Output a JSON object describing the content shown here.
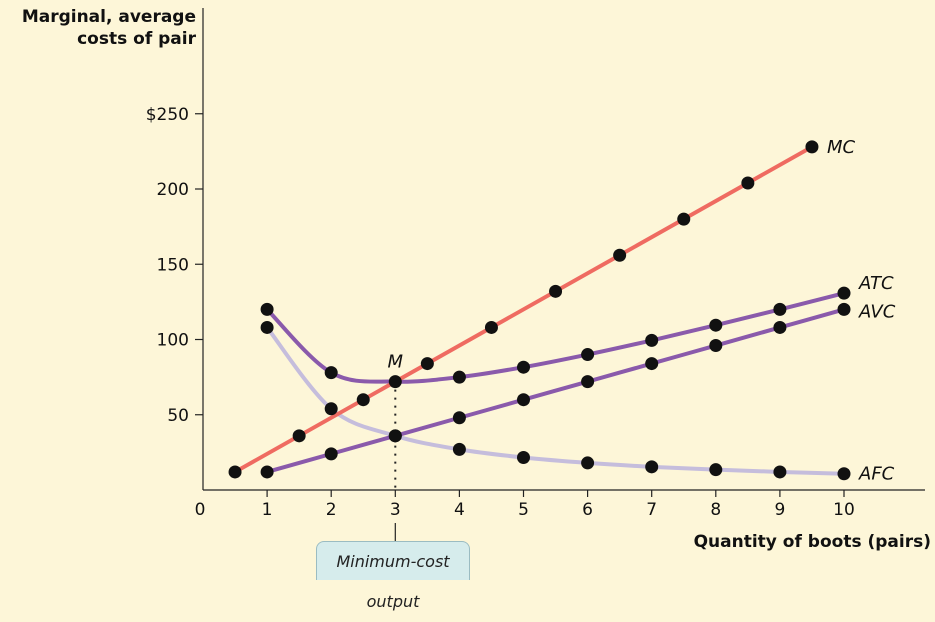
{
  "chart_data": {
    "type": "line",
    "ylabel": "Marginal, average costs of pair",
    "xlabel": "Quantity of boots (pairs)",
    "xlim": [
      0,
      10
    ],
    "ylim": [
      0,
      255
    ],
    "x_ticks": [
      "0",
      "1",
      "2",
      "3",
      "4",
      "5",
      "6",
      "7",
      "8",
      "9",
      "10"
    ],
    "y_ticks": [
      {
        "value": 50,
        "label": "50"
      },
      {
        "value": 100,
        "label": "100"
      },
      {
        "value": 150,
        "label": "150"
      },
      {
        "value": 200,
        "label": "200"
      },
      {
        "value": 250,
        "label": "$250"
      }
    ],
    "series": [
      {
        "name": "MC",
        "color": "#ef6b61",
        "x": [
          0.5,
          1.5,
          2.5,
          3.5,
          4.5,
          5.5,
          6.5,
          7.5,
          8.5,
          9.5
        ],
        "y": [
          12,
          36,
          60,
          84,
          108,
          132,
          156,
          180,
          204,
          228
        ]
      },
      {
        "name": "ATC",
        "color": "#8a5aab",
        "x": [
          1,
          2,
          3,
          4,
          5,
          6,
          7,
          8,
          9,
          10
        ],
        "y": [
          120,
          78,
          72,
          75,
          81.6,
          90,
          99.4,
          109.5,
          120,
          130.8
        ]
      },
      {
        "name": "AVC",
        "color": "#8a5aab",
        "x": [
          1,
          2,
          3,
          4,
          5,
          6,
          7,
          8,
          9,
          10
        ],
        "y": [
          12,
          24,
          36,
          48,
          60,
          72,
          84,
          96,
          108,
          120
        ]
      },
      {
        "name": "AFC",
        "color": "#c5bddc",
        "x": [
          1,
          2,
          3,
          4,
          5,
          6,
          7,
          8,
          9,
          10
        ],
        "y": [
          108,
          54,
          36,
          27,
          21.6,
          18,
          15.4,
          13.5,
          12,
          10.8
        ]
      }
    ],
    "annotations": [
      {
        "label": "M",
        "x": 3,
        "y": 72
      },
      {
        "label": "Minimum-cost output",
        "x": 3
      }
    ]
  }
}
